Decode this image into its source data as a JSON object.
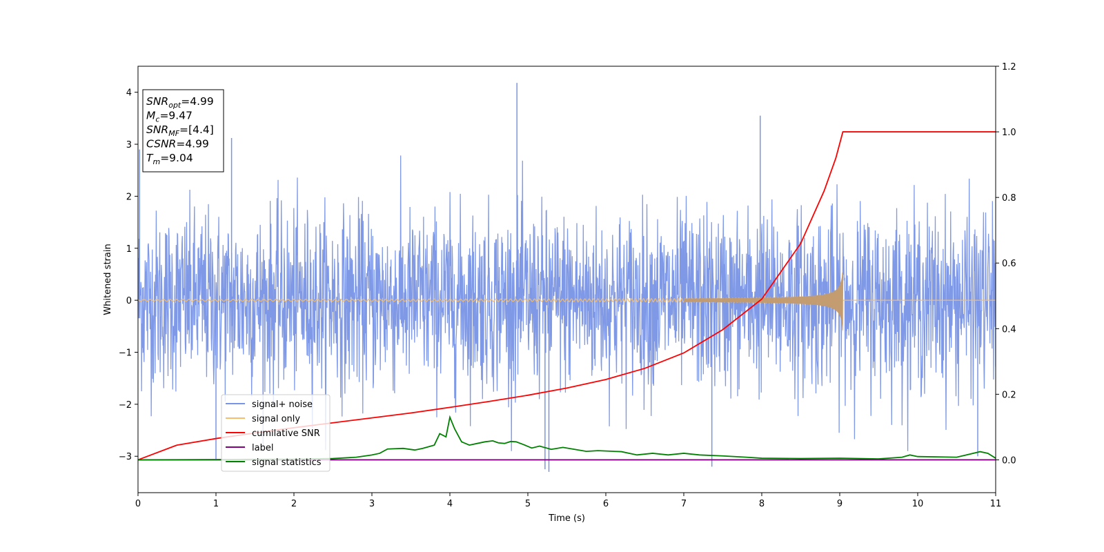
{
  "chart_data": {
    "type": "line",
    "xlabel": "Time (s)",
    "ylabel": "Whitened strain",
    "xlim": [
      0,
      11
    ],
    "ylim_left": [
      -3.7,
      4.5
    ],
    "ylim_right": [
      -0.1,
      1.2
    ],
    "x_ticks": [
      "0",
      "1",
      "2",
      "3",
      "4",
      "5",
      "6",
      "7",
      "8",
      "9",
      "10",
      "11"
    ],
    "y_left_ticks": [
      "−3",
      "−2",
      "−1",
      "0",
      "1",
      "2",
      "3",
      "4"
    ],
    "y_right_ticks": [
      "0.0",
      "0.2",
      "0.4",
      "0.6",
      "0.8",
      "1.0",
      "1.2"
    ],
    "legend_position": "lower-left",
    "grid": false,
    "merger_time": 9.04,
    "info_box": [
      {
        "main": "SNR",
        "sub": "opt",
        "value": "=4.99"
      },
      {
        "main": "M",
        "sub": "c",
        "value": "=9.47"
      },
      {
        "main": "SNR",
        "sub": "MF",
        "value": "=[4.4]"
      },
      {
        "main": "CSNR",
        "sub": "",
        "value": "=4.99"
      },
      {
        "main": "T",
        "sub": "m",
        "value": "=9.04"
      }
    ],
    "series": [
      {
        "name": "signal+ noise",
        "color": "#7894e6",
        "axis": "left",
        "kind": "noisy-strain",
        "range": [
          -2.5,
          2.5
        ],
        "peak_spikes": [
          [
            4.86,
            4.18
          ],
          [
            7.98,
            3.55
          ],
          [
            1.2,
            3.12
          ],
          [
            0.02,
            2.9
          ]
        ],
        "trough_spikes": [
          [
            5.27,
            -3.3
          ],
          [
            5.22,
            -3.25
          ],
          [
            7.36,
            -3.2
          ],
          [
            1.0,
            -3.05
          ],
          [
            10.77,
            -3.0
          ]
        ]
      },
      {
        "name": "signal only",
        "color": "#f5bd6c",
        "axis": "left",
        "kind": "chirp",
        "amplitude_max": 0.62
      },
      {
        "name": "cumilative SNR",
        "color": "#ff0000",
        "axis": "right",
        "x": [
          0,
          0.5,
          1,
          1.5,
          2,
          2.5,
          3,
          3.5,
          4,
          4.5,
          5,
          5.5,
          6,
          6.5,
          7,
          7.5,
          8,
          8.5,
          8.8,
          8.95,
          9.04,
          9.05,
          11
        ],
        "y": [
          0.0,
          0.045,
          0.065,
          0.082,
          0.098,
          0.113,
          0.128,
          0.143,
          0.16,
          0.178,
          0.197,
          0.219,
          0.245,
          0.279,
          0.326,
          0.397,
          0.49,
          0.66,
          0.82,
          0.92,
          1.0,
          1.0,
          1.0
        ]
      },
      {
        "name": "label",
        "color": "#800080",
        "axis": "right",
        "x": [
          0,
          11
        ],
        "y": [
          0,
          0
        ]
      },
      {
        "name": "signal statistics",
        "color": "#008000",
        "axis": "right",
        "x": [
          0,
          1,
          2,
          2.5,
          2.8,
          3.0,
          3.1,
          3.2,
          3.4,
          3.55,
          3.65,
          3.8,
          3.87,
          3.95,
          4.0,
          4.06,
          4.15,
          4.25,
          4.35,
          4.45,
          4.55,
          4.62,
          4.7,
          4.78,
          4.85,
          4.95,
          5.05,
          5.15,
          5.3,
          5.45,
          5.6,
          5.75,
          5.9,
          6.2,
          6.4,
          6.6,
          6.8,
          7.0,
          7.2,
          7.5,
          7.8,
          8.0,
          8.5,
          9.0,
          9.5,
          9.8,
          9.9,
          10.0,
          10.5,
          10.8,
          10.9,
          11.0
        ],
        "y": [
          0.0,
          0.001,
          0.002,
          0.004,
          0.008,
          0.015,
          0.02,
          0.033,
          0.035,
          0.03,
          0.035,
          0.045,
          0.08,
          0.07,
          0.13,
          0.095,
          0.055,
          0.045,
          0.05,
          0.055,
          0.058,
          0.052,
          0.05,
          0.056,
          0.055,
          0.046,
          0.036,
          0.042,
          0.032,
          0.038,
          0.032,
          0.026,
          0.028,
          0.025,
          0.015,
          0.02,
          0.015,
          0.02,
          0.015,
          0.012,
          0.008,
          0.005,
          0.004,
          0.005,
          0.003,
          0.008,
          0.015,
          0.01,
          0.008,
          0.025,
          0.02,
          0.005
        ]
      }
    ]
  }
}
